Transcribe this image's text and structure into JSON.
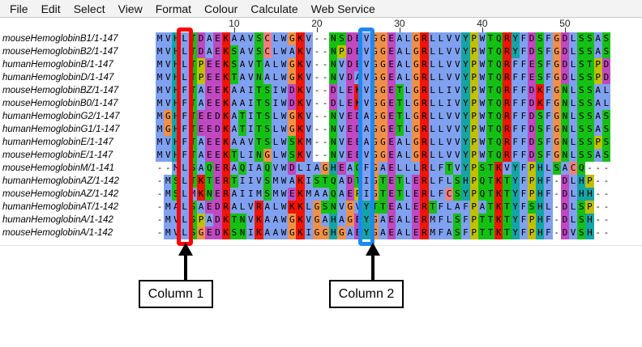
{
  "menu": [
    "File",
    "Edit",
    "Select",
    "View",
    "Format",
    "Colour",
    "Calculate",
    "Web Service"
  ],
  "ruler": [
    "10",
    "20",
    "30",
    "40",
    "50"
  ],
  "rows": [
    {
      "name": "mouseHemoglobinB1/1-147",
      "seq": "MVHLTDAEKAAVSCLWGKV--NSDEVGGEALGRLLVVYPWTQRYFDSFGDLSSAS"
    },
    {
      "name": "mouseHemoglobinB2/1-147",
      "seq": "MVHLTDAEKSAVSCLWAKV--NPDEVGGEALGRLLVVYPWTQRYFDSFGDLSSAS"
    },
    {
      "name": "humanHemoglobinB/1-147",
      "seq": "MVHLTPEEKSAVTALWGKV--NVDEVGGEALGRLLVVYPWTQRFFESFGDLSTPD"
    },
    {
      "name": "humanHemoglobinD/1-147",
      "seq": "MVHLTPEEKTAVNALWGKV--NVDAVGGEALGRLLVVYPWTQRFFESFGDLSSPD"
    },
    {
      "name": "mouseHemoglobinBZ/1-147",
      "seq": "MVHFTAEEKAAITSIWDKV--DLEKVGGETLGRLLIVYPWTQRFFDKFGNLSSAL"
    },
    {
      "name": "mouseHemoglobinB0/1-147",
      "seq": "MVHFTAEEKAAITSIWDKV--DLEKVGGETLGRLLIVYPWTQRFFDKFGNLSSAL"
    },
    {
      "name": "humanHemoglobinG2/1-147",
      "seq": "MGHFTEEDKATITSLWGKV--NVEDAGGETLGRLLVVYPWTQRFFDSFGNLSSAS"
    },
    {
      "name": "humanHemoglobinG1/1-147",
      "seq": "MGHFTEEDKATITSLWGKV--NVEDAGGETLGRLLVVYPWTQRFFDSFGNLSSAS"
    },
    {
      "name": "humanHemoglobinE/1-147",
      "seq": "MVHFTAEEKAAVTSLWSKM--NVEEAGGEALGRLLVVYPWTQRFFDSFGNLSSPS"
    },
    {
      "name": "mouseHemoglobinE/1-147",
      "seq": "MVHFTAEEKTLINGLWSKV--NVEEVGGEALGRLLVVYPWTQRFFDSFGNLSSAS"
    },
    {
      "name": "mouseHemoglobinM/1-141",
      "seq": "--MLSAQERAQIAQVWDLIAGHEAQFGAELLLRLFTVYPSTKVYFPHLSACQ---"
    },
    {
      "name": "humanHemoglobinAZ/1-142",
      "seq": "-MSLTKTERTIIVSMWAKISTQADTIGTETLERLFLSHPQTKTYFPHF-DLHP--"
    },
    {
      "name": "mouseHemoglobinAZ/1-142",
      "seq": "-MSLMKNERAIIMSMWEKMAAQAEPIGTETLERLFCSYPQTKTYFPHF-DLHH--"
    },
    {
      "name": "humanHemoglobinAT/1-142",
      "seq": "-MALSAEDRALVRALWKKLGSNVGVYTTEALERTFLAFPATKTYFSHL-DLSP--"
    },
    {
      "name": "humanHemoglobinA/1-142",
      "seq": "-MVLSPADKTNVKAAWGKVGAHAGEYGAEALERMFLSFPTTKTYFPHF-DLSH--"
    },
    {
      "name": "mouseHemoglobinA/1-142",
      "seq": "-MVLSGEDKSNIKAAWGKIGGHGAEYGAEALERMFASFPTTKTYFPHF-DVSH--"
    }
  ],
  "labels": {
    "column1": "Column 1",
    "column2": "Column 2"
  },
  "colors": {
    "hydrophobic": "#80a0f0",
    "positive": "#f01505",
    "negative": "#c048c0",
    "polar": "#15c015",
    "cysteine": "#f08080",
    "glycine": "#f09048",
    "proline": "#c0c000",
    "aromatic": "#15a4a4",
    "column1": "#ff0000",
    "column2": "#1e88f0"
  }
}
